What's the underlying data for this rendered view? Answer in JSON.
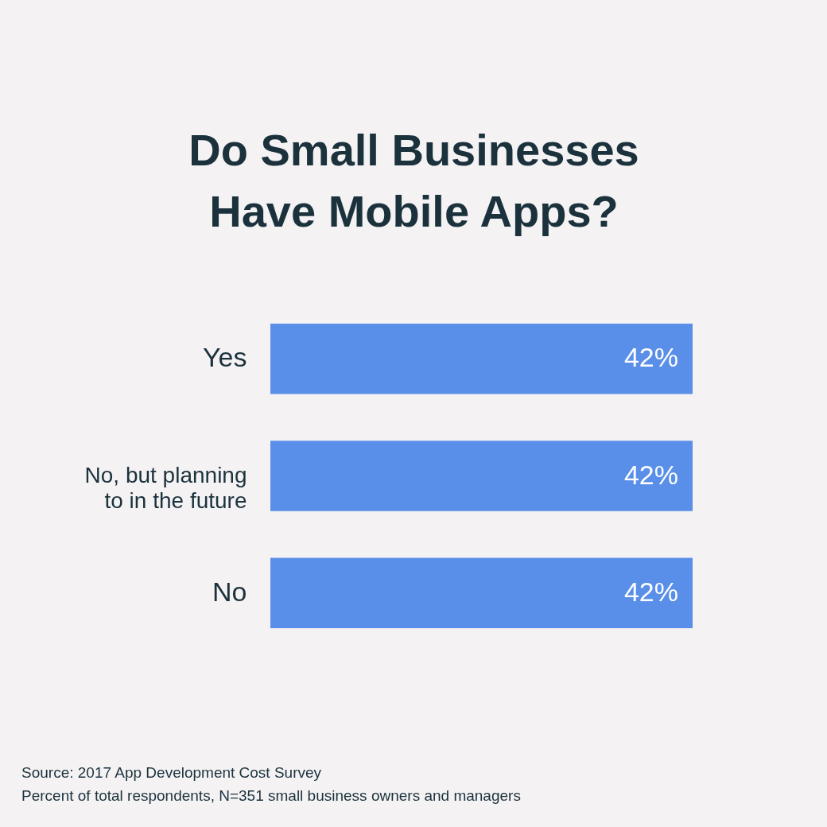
{
  "chart_data": {
    "type": "bar",
    "orientation": "horizontal",
    "title": "Do Small Businesses\nHave Mobile Apps?",
    "categories": [
      "Yes",
      "No, but planning\nto in the future",
      "No"
    ],
    "values": [
      42,
      42,
      42
    ],
    "color": "#5a8fe9",
    "value_labels": [
      "42%",
      "42%",
      "42%"
    ],
    "annotations": [
      "Source: 2017 App Development Cost Survey",
      "Percent of total respondents, N=351 small business owners and managers"
    ]
  }
}
